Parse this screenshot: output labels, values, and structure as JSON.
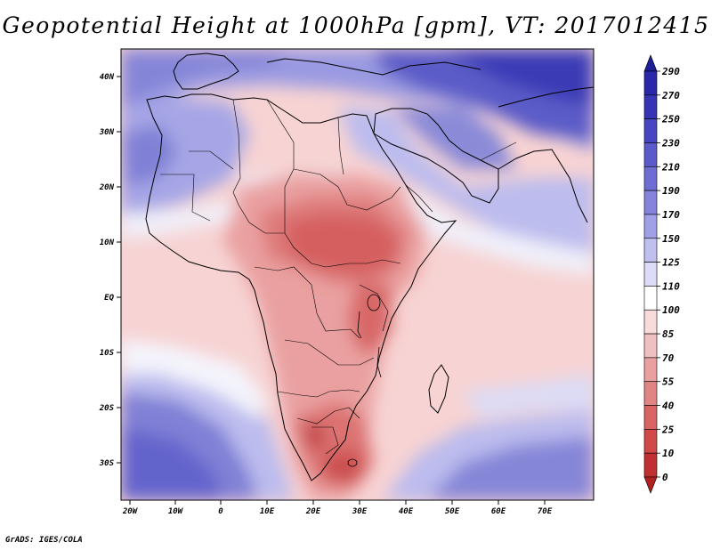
{
  "title": "Geopotential Height at 1000hPa [gpm], VT: 2017012415",
  "credit": "GrADS: IGES/COLA",
  "map": {
    "region": "Africa, Arabia and Western Indian Ocean",
    "lat_labels": [
      "40N",
      "30N",
      "20N",
      "10N",
      "EQ",
      "10S",
      "20S",
      "30S"
    ],
    "lon_labels": [
      "20W",
      "10W",
      "0",
      "10E",
      "20E",
      "30E",
      "40E",
      "50E",
      "60E",
      "70E"
    ]
  },
  "colorbar": {
    "levels": [
      "290",
      "270",
      "250",
      "230",
      "210",
      "190",
      "170",
      "150",
      "125",
      "110",
      "100",
      "85",
      "70",
      "55",
      "40",
      "25",
      "10",
      "0"
    ],
    "colors": [
      "#1e1e96",
      "#2828a8",
      "#3434b4",
      "#4646c0",
      "#5a5ac8",
      "#6e6ed2",
      "#8484dc",
      "#a0a0e6",
      "#c0c0f0",
      "#dcdcf8",
      "#ffffff",
      "#f8dcdc",
      "#f0c0c0",
      "#e8a0a0",
      "#e08484",
      "#d86464",
      "#d04848",
      "#c03030",
      "#b02020"
    ]
  },
  "colors": {
    "land_dark_red": "#d45555",
    "high_blue": "#3b3bb8"
  }
}
